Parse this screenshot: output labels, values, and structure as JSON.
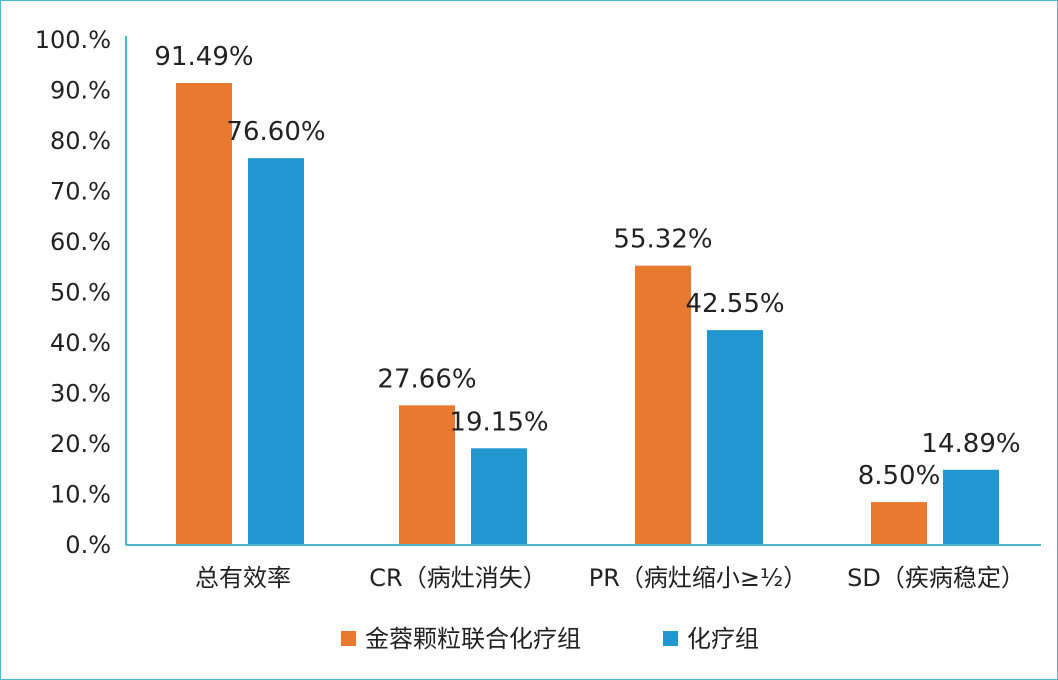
{
  "chart_data": {
    "type": "bar",
    "categories": [
      "总有效率",
      "CR（病灶消失）",
      "PR（病灶缩小≥½）",
      "SD（疾病稳定）"
    ],
    "series": [
      {
        "name": "金蓉颗粒联合化疗组",
        "values": [
          91.49,
          27.66,
          55.32,
          8.5
        ],
        "labels": [
          "91.49%",
          "27.66%",
          "55.32%",
          "8.50%"
        ],
        "color": "#e87a30"
      },
      {
        "name": "化疗组",
        "values": [
          76.6,
          19.15,
          42.55,
          14.89
        ],
        "labels": [
          "76.60%",
          "19.15%",
          "42.55%",
          "14.89%"
        ],
        "color": "#2196cf"
      }
    ],
    "yticks": [
      "0.%",
      "10.%",
      "20.%",
      "30.%",
      "40.%",
      "50.%",
      "60.%",
      "70.%",
      "80.%",
      "90.%",
      "100.%"
    ],
    "ylim": [
      0,
      100
    ],
    "legend": "bottom-center",
    "grid": false,
    "axis_color": "#4fb6c3"
  }
}
